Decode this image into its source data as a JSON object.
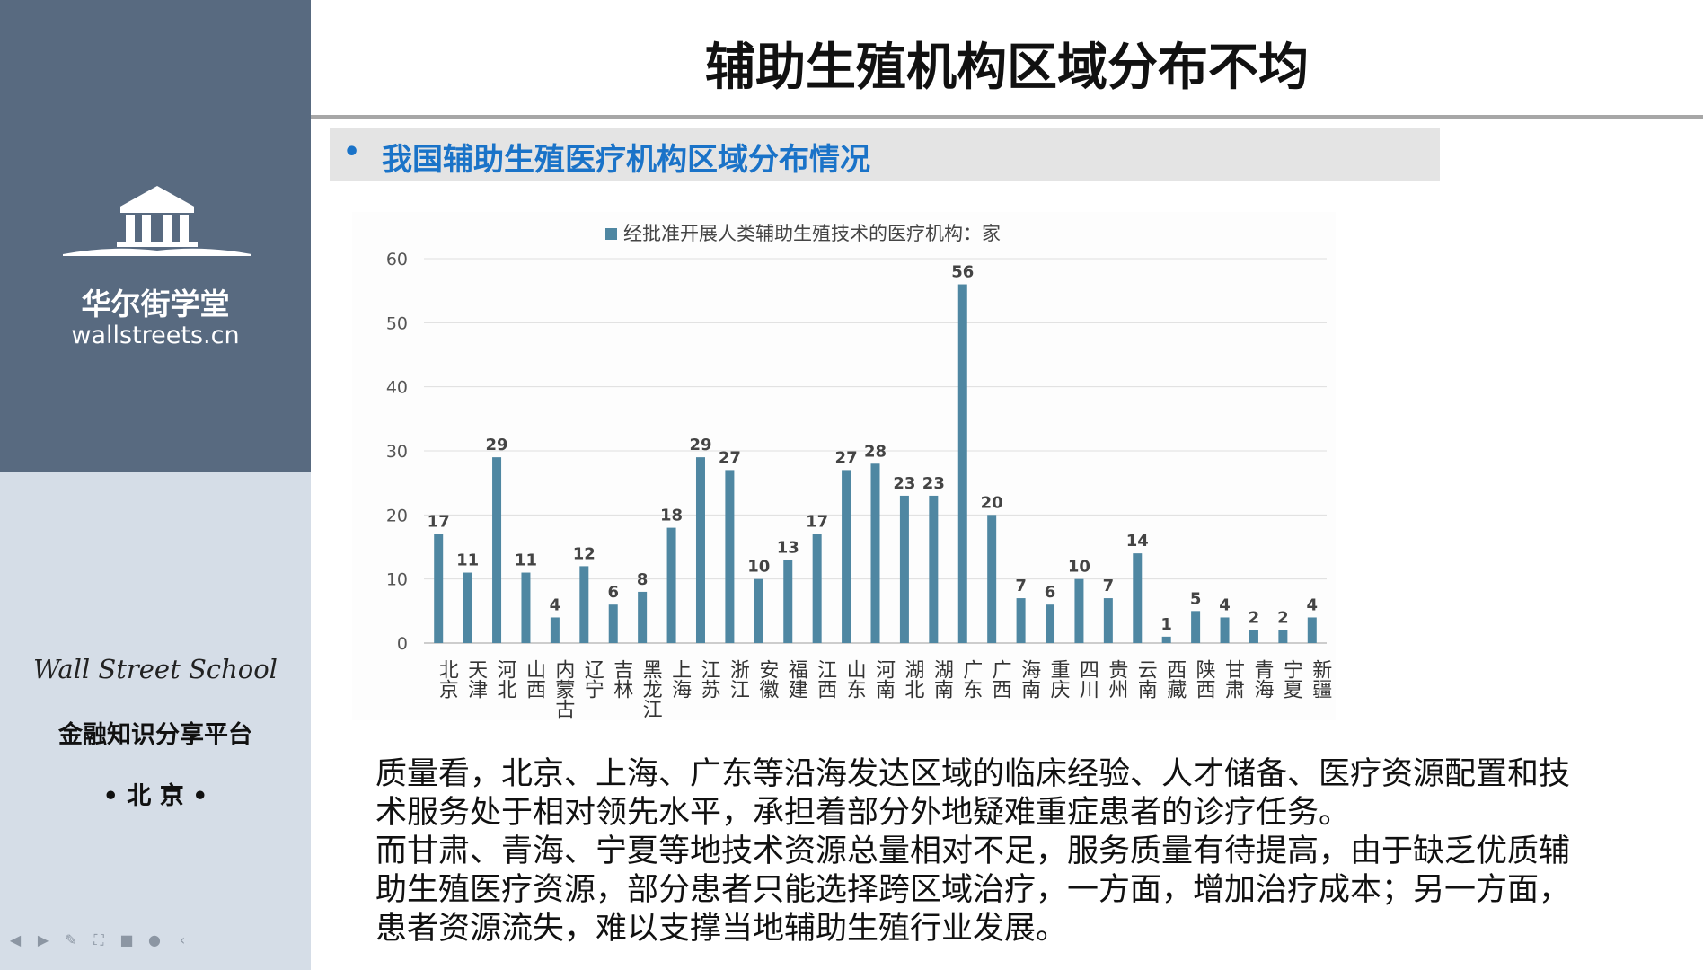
{
  "sidebar": {
    "brand_cn": "华尔街学堂",
    "brand_url": "wallstreets.cn",
    "school_name": "Wall Street School",
    "platform": "金融知识分享平台",
    "city": "• 北 京 •",
    "logo_icon": "institution-building-icon",
    "colors": {
      "top": "#586a80",
      "bottom": "#d5dde7"
    }
  },
  "slide": {
    "title": "辅助生殖机构区域分布不均",
    "section_bullet": "•",
    "section_heading": "我国辅助生殖医疗机构区域分布情况",
    "paragraph_1": "质量看，北京、上海、广东等沿海发达区域的临床经验、人才储备、医疗资源配置和技术服务处于相对领先水平，承担着部分外地疑难重症患者的诊疗任务。",
    "paragraph_2": "而甘肃、青海、宁夏等地技术资源总量相对不足，服务质量有待提高，由于缺乏优质辅助生殖医疗资源，部分患者只能选择跨区域治疗，一方面，增加治疗成本；另一方面，患者资源流失，难以支撑当地辅助生殖行业发展。"
  },
  "player_controls": [
    "prev-icon",
    "next-icon",
    "pen-icon",
    "fullscreen-icon",
    "camera-icon",
    "more-icon",
    "collapse-icon"
  ],
  "chart_data": {
    "type": "bar",
    "title": "",
    "xlabel": "",
    "ylabel": "",
    "ylim": [
      0,
      60
    ],
    "yticks": [
      0,
      10,
      20,
      30,
      40,
      50,
      60
    ],
    "grid": true,
    "legend_position": "top-center",
    "bar_color": "#4f87a2",
    "categories": [
      "北京",
      "天津",
      "河北",
      "山西",
      "内蒙古",
      "辽宁",
      "吉林",
      "黑龙江",
      "上海",
      "江苏",
      "浙江",
      "安徽",
      "福建",
      "江西",
      "山东",
      "河南",
      "湖北",
      "湖南",
      "广东",
      "广西",
      "海南",
      "重庆",
      "四川",
      "贵州",
      "云南",
      "西藏",
      "陕西",
      "甘肃",
      "青海",
      "宁夏",
      "新疆"
    ],
    "series": [
      {
        "name": "经批准开展人类辅助生殖技术的医疗机构：家",
        "values": [
          17,
          11,
          29,
          11,
          4,
          12,
          6,
          8,
          18,
          29,
          27,
          10,
          13,
          17,
          27,
          28,
          23,
          23,
          56,
          20,
          7,
          6,
          10,
          7,
          14,
          1,
          5,
          4,
          2,
          2,
          4
        ]
      }
    ]
  }
}
